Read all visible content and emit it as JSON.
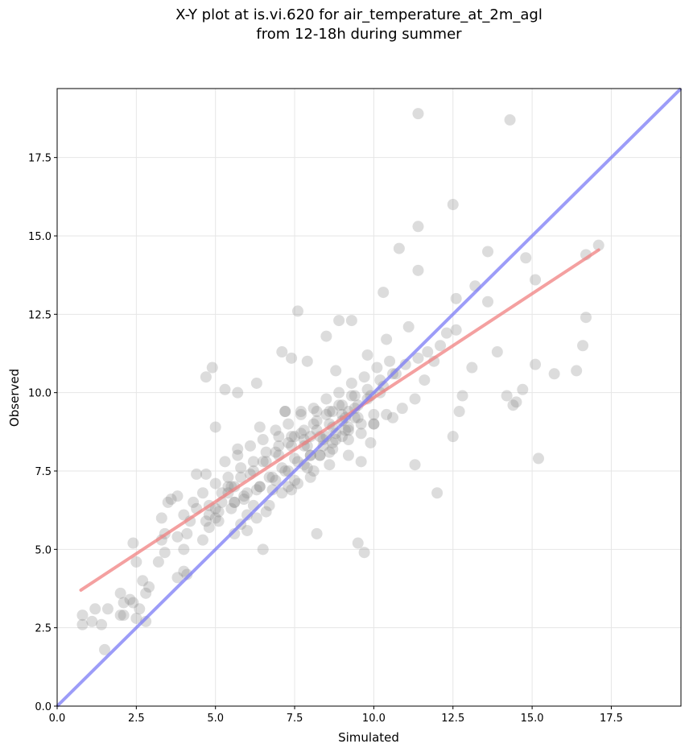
{
  "chart_data": {
    "type": "scatter",
    "title": "X-Y plot at is.vi.620 for air_temperature_at_2m_agl",
    "subtitle": "from 12-18h during summer",
    "xlabel": "Simulated",
    "ylabel": "Observed",
    "xlim": [
      0,
      19.7
    ],
    "ylim": [
      0,
      19.7
    ],
    "xticks": [
      0,
      2.5,
      5,
      7.5,
      10,
      12.5,
      15,
      17.5
    ],
    "yticks": [
      0,
      2.5,
      5,
      7.5,
      10,
      12.5,
      15,
      17.5
    ],
    "xtick_labels": [
      "0.0",
      "2.5",
      "5.0",
      "7.5",
      "10.0",
      "12.5",
      "15.0",
      "17.5"
    ],
    "ytick_labels": [
      "0.0",
      "2.5",
      "5.0",
      "7.5",
      "10.0",
      "12.5",
      "15.0",
      "17.5"
    ],
    "grid": true,
    "colors": {
      "points": "#808080",
      "fit_line": "#f08080",
      "identity_line": "#7b7bf5"
    },
    "fit_line": {
      "x": [
        0.75,
        17.1
      ],
      "y": [
        3.7,
        14.55
      ]
    },
    "identity_line": {
      "x": [
        0,
        19.7
      ],
      "y": [
        0,
        19.7
      ]
    },
    "points": {
      "x": [
        0.8,
        0.8,
        1.1,
        1.2,
        1.4,
        1.5,
        1.6,
        2.0,
        2.0,
        2.1,
        2.1,
        2.3,
        2.4,
        2.4,
        2.5,
        2.5,
        2.6,
        2.7,
        2.8,
        2.8,
        2.9,
        3.2,
        3.3,
        3.3,
        3.4,
        3.4,
        3.8,
        3.8,
        4.0,
        4.0,
        4.1,
        4.1,
        4.2,
        4.3,
        4.4,
        4.6,
        4.7,
        4.7,
        4.9,
        5.0,
        3.5,
        3.6,
        3.8,
        4.0,
        4.4,
        4.8,
        5.0,
        5.2,
        5.4,
        5.6,
        4.8,
        5.0,
        5.6,
        5.8,
        6.0,
        6.2,
        5.7,
        6.5,
        11.4,
        14.3,
        12.5,
        11.4,
        11.4,
        10.8,
        10.3,
        12.6,
        12.6,
        13.2,
        13.6,
        14.8,
        15.1,
        16.7,
        17.1,
        15.1,
        16.7,
        16.6,
        16.4,
        15.7,
        15.2,
        14.7,
        14.5,
        14.4,
        14.2,
        13.9,
        13.6,
        13.1,
        12.8,
        12.7,
        12.5,
        12.3,
        12.1,
        11.9,
        11.7,
        11.6,
        11.4,
        11.3,
        12.0,
        9.5,
        9.7,
        8.2,
        7.6,
        5.3,
        6.3,
        7.1,
        7.4,
        7.9,
        8.5,
        8.9,
        9.3,
        4.8,
        5.2,
        5.5,
        6.1,
        4.7,
        5.1,
        5.6,
        5.9,
        6.4,
        6.9,
        7.3,
        7.8,
        8.3,
        8.7,
        9.2,
        9.6,
        10.0,
        10.4,
        10.9,
        11.3,
        4.6,
        5.0,
        5.4,
        5.8,
        6.2,
        6.6,
        7.0,
        7.4,
        7.8,
        8.2,
        8.6,
        9.0,
        9.4,
        9.8,
        10.2,
        10.6,
        11.0,
        5.1,
        5.5,
        5.9,
        6.3,
        6.7,
        7.1,
        7.5,
        7.9,
        8.3,
        8.7,
        9.1,
        9.5,
        9.9,
        10.3,
        10.7,
        5.3,
        5.7,
        6.1,
        6.5,
        6.9,
        7.3,
        7.7,
        8.1,
        8.5,
        8.9,
        9.3,
        9.7,
        10.1,
        10.5,
        5.4,
        5.8,
        6.2,
        6.6,
        7.0,
        7.4,
        7.8,
        8.2,
        8.6,
        9.0,
        9.4,
        9.8,
        10.2,
        5.6,
        6.0,
        6.4,
        6.8,
        7.2,
        7.6,
        8.0,
        8.4,
        8.8,
        9.2,
        9.6,
        10.0,
        6.3,
        6.7,
        7.1,
        7.5,
        7.9,
        8.3,
        8.7,
        9.1,
        9.5,
        6.5,
        6.9,
        7.3,
        7.7,
        8.1,
        8.5,
        8.9,
        9.3,
        7.0,
        7.5,
        8.0,
        8.5,
        9.0,
        7.2,
        7.7,
        8.2,
        8.7,
        9.2,
        8.8,
        9.0,
        9.2,
        9.4,
        7.8,
        8.0,
        8.4,
        8.6,
        6.8,
        7.6,
        9.6,
        10.0,
        10.6,
        6.0,
        6.6,
        7.4,
        8.1,
        5.7,
        6.4,
        7.2,
        8.8,
        9.8,
        10.4,
        11.1,
        7.3,
        8.0,
        8.6,
        9.2,
        9.9
      ],
      "y": [
        2.6,
        2.9,
        2.7,
        3.1,
        2.6,
        1.8,
        3.1,
        2.9,
        3.6,
        2.9,
        3.3,
        3.4,
        3.3,
        5.2,
        2.8,
        4.6,
        3.1,
        4.0,
        2.7,
        3.6,
        3.8,
        4.6,
        6.0,
        5.3,
        4.9,
        5.5,
        4.1,
        5.4,
        4.3,
        5.0,
        4.2,
        5.5,
        5.9,
        6.5,
        7.4,
        5.3,
        7.4,
        10.5,
        10.8,
        8.9,
        6.5,
        6.6,
        6.7,
        6.1,
        6.3,
        6.1,
        6.3,
        6.5,
        6.8,
        7.0,
        5.7,
        6.0,
        5.5,
        5.8,
        6.1,
        6.4,
        10.0,
        5.0,
        18.9,
        18.7,
        16.0,
        15.3,
        13.9,
        14.6,
        13.2,
        13.0,
        12.0,
        13.4,
        14.5,
        14.3,
        13.6,
        14.4,
        14.7,
        10.9,
        12.4,
        11.5,
        10.7,
        10.6,
        7.9,
        10.1,
        9.7,
        9.6,
        9.9,
        11.3,
        12.9,
        10.8,
        9.9,
        9.4,
        8.6,
        11.9,
        11.5,
        11.0,
        11.3,
        10.4,
        11.1,
        7.7,
        6.8,
        5.2,
        4.9,
        5.5,
        12.6,
        10.1,
        10.3,
        11.3,
        11.1,
        11.0,
        11.8,
        12.3,
        12.3,
        6.4,
        6.8,
        7.0,
        7.4,
        5.9,
        6.2,
        6.5,
        6.7,
        7.0,
        7.2,
        7.5,
        7.7,
        8.0,
        8.2,
        8.5,
        8.7,
        9.0,
        9.3,
        9.5,
        9.8,
        6.8,
        7.1,
        7.3,
        7.6,
        7.8,
        8.1,
        8.3,
        8.6,
        8.8,
        9.1,
        9.4,
        9.6,
        9.9,
        10.1,
        10.4,
        10.6,
        10.9,
        5.9,
        6.3,
        6.6,
        6.9,
        7.3,
        7.6,
        7.9,
        8.3,
        8.6,
        8.9,
        9.2,
        9.6,
        9.9,
        10.2,
        10.6,
        7.8,
        8.0,
        8.3,
        8.5,
        8.8,
        9.0,
        9.3,
        9.5,
        9.8,
        10.0,
        10.3,
        10.5,
        10.8,
        11.0,
        7.0,
        7.3,
        7.5,
        7.8,
        8.0,
        8.3,
        8.5,
        8.8,
        9.0,
        9.3,
        9.5,
        9.8,
        10.0,
        6.5,
        6.8,
        7.0,
        7.3,
        7.5,
        7.8,
        8.0,
        8.3,
        8.5,
        8.8,
        9.0,
        9.3,
        6.0,
        6.4,
        6.8,
        7.2,
        7.6,
        8.0,
        8.4,
        8.8,
        9.2,
        7.8,
        8.1,
        8.4,
        8.7,
        9.0,
        9.3,
        9.6,
        9.9,
        8.6,
        8.6,
        8.6,
        8.6,
        8.6,
        9.4,
        9.4,
        9.4,
        9.4,
        9.4,
        8.7,
        9.1,
        8.9,
        9.2,
        8.3,
        8.0,
        8.5,
        8.1,
        6.9,
        7.1,
        7.8,
        9.0,
        9.2,
        5.6,
        6.2,
        6.9,
        7.5,
        8.2,
        8.9,
        9.4,
        10.7,
        11.2,
        11.7,
        12.1,
        7.0,
        7.3,
        7.7,
        8.0,
        8.4
      ]
    }
  }
}
